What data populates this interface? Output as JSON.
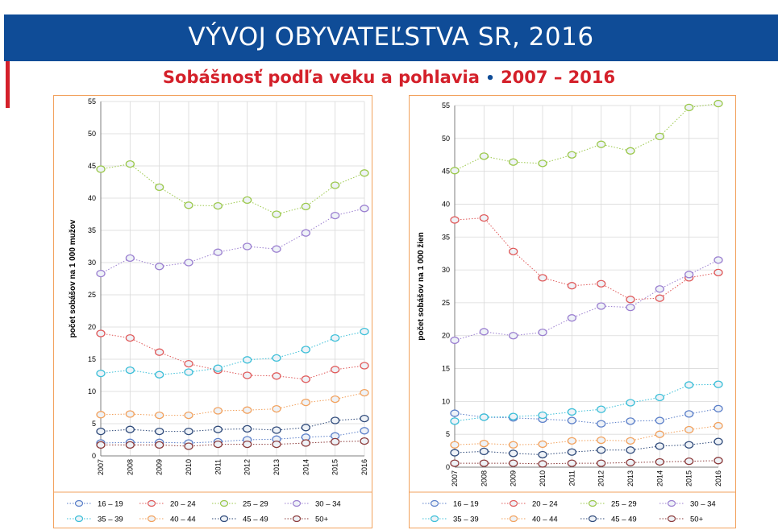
{
  "header": {
    "title": "VÝVOJ OBYVATEĽSTVA SR, 2016"
  },
  "subtitle": {
    "text": "Sobášnosť podľa veku a pohlavia",
    "bullet": "•",
    "years": "2007 – 2016"
  },
  "colors": {
    "banner": "#0f4c97",
    "accent_red": "#d4202a",
    "panel_border": "#f2a15c"
  },
  "series_colors": {
    "16 – 19": "#5b7fc9",
    "20 – 24": "#e05a5a",
    "25 – 29": "#9bc84a",
    "30 – 34": "#9b7fd0",
    "35 – 39": "#3bbfd8",
    "40 – 44": "#f2a15c",
    "45 – 49": "#2f4a7a",
    "50+": "#8b3a3a"
  },
  "chart_data": [
    {
      "type": "line",
      "title": "",
      "xlabel": "",
      "ylabel": "počet sobášov na 1 000 mužov",
      "ylim": [
        0,
        55
      ],
      "yticks": [
        "0",
        "5",
        "10",
        "15",
        "20",
        "25",
        "30",
        "35",
        "40",
        "45",
        "50",
        "55"
      ],
      "categories": [
        "2007",
        "2008",
        "2009",
        "2010",
        "2011",
        "2012",
        "2013",
        "2014",
        "2015",
        "2016"
      ],
      "legend": "bottom",
      "series": [
        {
          "name": "16 – 19",
          "values": [
            2.0,
            2.1,
            2.1,
            2.0,
            2.2,
            2.5,
            2.6,
            2.9,
            3.1,
            3.9
          ]
        },
        {
          "name": "20 – 24",
          "values": [
            19.0,
            18.3,
            16.1,
            14.3,
            13.3,
            12.5,
            12.4,
            11.9,
            13.4,
            14.0
          ]
        },
        {
          "name": "25 – 29",
          "values": [
            44.5,
            45.3,
            41.7,
            38.9,
            38.8,
            39.7,
            37.5,
            38.7,
            42.0,
            43.9
          ]
        },
        {
          "name": "30 – 34",
          "values": [
            28.3,
            30.7,
            29.4,
            30.0,
            31.6,
            32.5,
            32.1,
            34.6,
            37.3,
            38.4
          ]
        },
        {
          "name": "35 – 39",
          "values": [
            12.8,
            13.3,
            12.6,
            13.0,
            13.6,
            14.9,
            15.2,
            16.5,
            18.3,
            19.3
          ]
        },
        {
          "name": "40 – 44",
          "values": [
            6.4,
            6.5,
            6.3,
            6.3,
            7.0,
            7.1,
            7.3,
            8.3,
            8.8,
            9.8
          ]
        },
        {
          "name": "45 – 49",
          "values": [
            3.8,
            4.1,
            3.8,
            3.8,
            4.1,
            4.2,
            4.0,
            4.4,
            5.5,
            5.8
          ]
        },
        {
          "name": "50+",
          "values": [
            1.7,
            1.7,
            1.7,
            1.5,
            1.8,
            1.8,
            1.8,
            2.0,
            2.2,
            2.3
          ]
        }
      ]
    },
    {
      "type": "line",
      "title": "",
      "xlabel": "",
      "ylabel": "počet sobášov na 1 000 žien",
      "ylim": [
        0,
        55
      ],
      "yticks": [
        "0",
        "5",
        "10",
        "15",
        "20",
        "25",
        "30",
        "35",
        "40",
        "45",
        "50",
        "55"
      ],
      "categories": [
        "2007",
        "2008",
        "2009",
        "2010",
        "2011",
        "2012",
        "2013",
        "2014",
        "2015",
        "2016"
      ],
      "legend": "bottom",
      "series": [
        {
          "name": "16 – 19",
          "values": [
            8.2,
            7.6,
            7.5,
            7.3,
            7.1,
            6.6,
            7.0,
            7.1,
            8.1,
            8.9
          ]
        },
        {
          "name": "20 – 24",
          "values": [
            37.6,
            37.9,
            32.8,
            28.8,
            27.6,
            27.9,
            25.5,
            25.7,
            28.8,
            29.6
          ]
        },
        {
          "name": "25 – 29",
          "values": [
            45.1,
            47.3,
            46.4,
            46.2,
            47.5,
            49.1,
            48.1,
            50.3,
            54.7,
            55.3
          ]
        },
        {
          "name": "30 – 34",
          "values": [
            19.3,
            20.6,
            20.0,
            20.5,
            22.7,
            24.5,
            24.3,
            27.1,
            29.3,
            31.5
          ]
        },
        {
          "name": "35 – 39",
          "values": [
            7.0,
            7.6,
            7.7,
            7.9,
            8.4,
            8.8,
            9.8,
            10.6,
            12.5,
            12.6
          ]
        },
        {
          "name": "40 – 44",
          "values": [
            3.4,
            3.6,
            3.4,
            3.5,
            4.0,
            4.1,
            4.0,
            5.0,
            5.7,
            6.3
          ]
        },
        {
          "name": "45 – 49",
          "values": [
            2.2,
            2.4,
            2.1,
            1.9,
            2.3,
            2.6,
            2.6,
            3.2,
            3.4,
            3.9
          ]
        },
        {
          "name": "50+",
          "values": [
            0.6,
            0.6,
            0.6,
            0.5,
            0.6,
            0.6,
            0.7,
            0.8,
            0.9,
            1.0
          ]
        }
      ]
    }
  ]
}
